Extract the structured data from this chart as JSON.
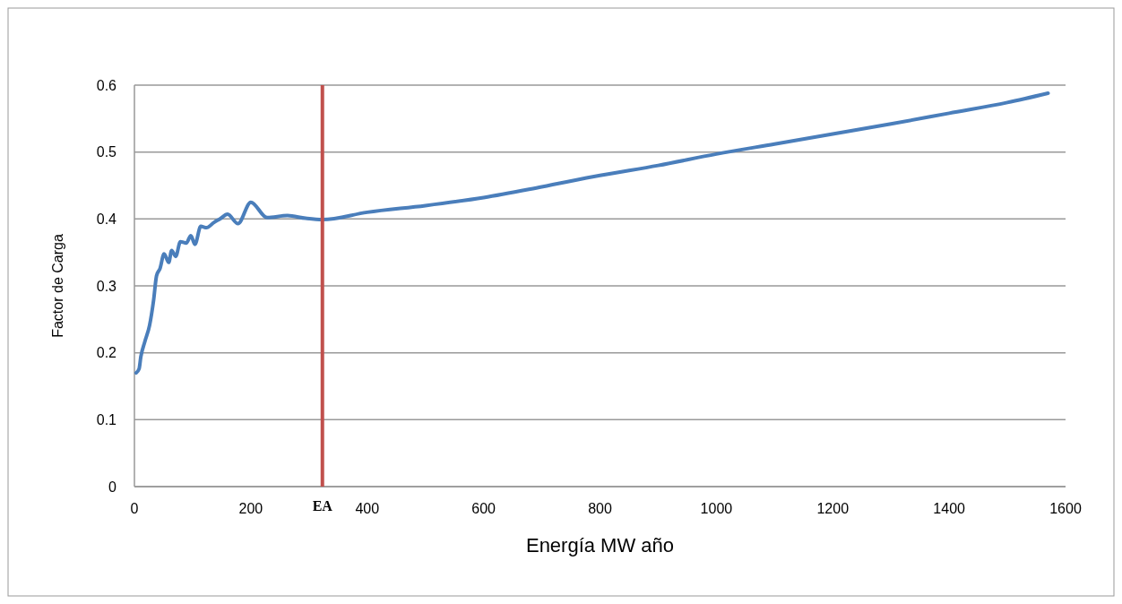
{
  "chart_data": {
    "type": "line",
    "xlabel": "Energía MW año",
    "ylabel": "Factor de Carga",
    "xlim": [
      0,
      1600
    ],
    "xticks": [
      0,
      200,
      400,
      600,
      800,
      1000,
      1200,
      1400,
      1600
    ],
    "ylim": [
      0,
      0.6
    ],
    "yticks": [
      0,
      0.1,
      0.2,
      0.3,
      0.4,
      0.5,
      0.6
    ],
    "grid": "y",
    "marker": "none",
    "line_style": "solid",
    "series": [
      {
        "color": "#4a7ebb",
        "x": [
          3,
          8,
          11,
          18,
          26,
          33,
          38,
          44,
          51,
          59,
          64,
          71,
          79,
          89,
          97,
          104,
          114,
          124,
          137,
          147,
          160,
          178,
          200,
          228,
          263,
          294,
          323,
          400,
          500,
          600,
          700,
          800,
          900,
          1000,
          1100,
          1200,
          1300,
          1400,
          1500,
          1570
        ],
        "values": [
          0.17,
          0.176,
          0.194,
          0.217,
          0.241,
          0.279,
          0.315,
          0.326,
          0.348,
          0.335,
          0.353,
          0.344,
          0.366,
          0.364,
          0.375,
          0.362,
          0.389,
          0.387,
          0.395,
          0.4,
          0.407,
          0.393,
          0.425,
          0.402,
          0.405,
          0.401,
          0.399,
          0.41,
          0.42,
          0.432,
          0.448,
          0.465,
          0.48,
          0.497,
          0.512,
          0.527,
          0.542,
          0.558,
          0.574,
          0.588
        ]
      }
    ],
    "ref_lines": [
      {
        "axis": "x",
        "value": 323,
        "label": "EA",
        "color": "#c0504d"
      }
    ]
  }
}
